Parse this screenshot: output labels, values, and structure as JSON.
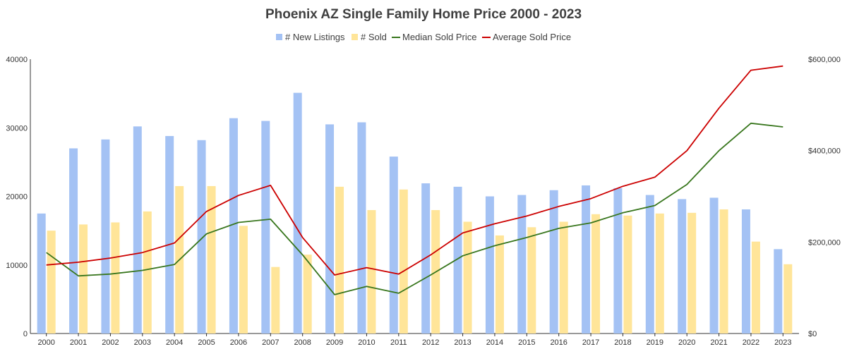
{
  "chart_data": {
    "type": "bar",
    "title": "Phoenix AZ Single Family Home Price 2000 - 2023",
    "categories": [
      "2000",
      "2001",
      "2002",
      "2003",
      "2004",
      "2005",
      "2006",
      "2007",
      "2008",
      "2009",
      "2010",
      "2011",
      "2012",
      "2013",
      "2014",
      "2015",
      "2016",
      "2017",
      "2018",
      "2019",
      "2020",
      "2021",
      "2022",
      "2023"
    ],
    "left_axis": {
      "ylim": [
        0,
        40000
      ],
      "ticks": [
        "0",
        "10000",
        "20000",
        "30000",
        "40000"
      ]
    },
    "right_axis": {
      "ylim": [
        0,
        600000
      ],
      "ticks": [
        "$0",
        "$200,000",
        "$400,000",
        "$600,000"
      ]
    },
    "bar_series": [
      {
        "name": "# New Listings",
        "color": "#a4c2f4",
        "axis": "left",
        "values": [
          17500,
          27000,
          28300,
          30200,
          28800,
          28200,
          31400,
          31000,
          35100,
          30500,
          30800,
          25800,
          21900,
          21400,
          20000,
          20200,
          20900,
          21600,
          21200,
          20200,
          19600,
          19800,
          18100,
          12300
        ]
      },
      {
        "name": "# Sold",
        "color": "#ffe599",
        "axis": "left",
        "values": [
          15000,
          15900,
          16200,
          17800,
          21500,
          21500,
          15700,
          9700,
          11500,
          21400,
          18000,
          21000,
          18000,
          16300,
          14300,
          15500,
          16300,
          17400,
          17200,
          17500,
          17600,
          18100,
          13400,
          10100
        ]
      }
    ],
    "line_series": [
      {
        "name": "Median Sold Price",
        "color": "#38761d",
        "axis": "right",
        "values": [
          177000,
          126000,
          130000,
          138000,
          151000,
          218000,
          243000,
          250000,
          172000,
          85000,
          103000,
          88000,
          128000,
          170000,
          192000,
          210000,
          230000,
          242000,
          264000,
          280000,
          326000,
          400000,
          460000,
          452000
        ]
      },
      {
        "name": "Average Sold Price",
        "color": "#cc0000",
        "axis": "right",
        "values": [
          150000,
          156000,
          165000,
          177000,
          198000,
          267000,
          302000,
          324000,
          210000,
          128000,
          144000,
          130000,
          172000,
          220000,
          240000,
          257000,
          278000,
          295000,
          322000,
          342000,
          400000,
          493000,
          576000,
          585000
        ]
      }
    ],
    "legend_position": "top",
    "grid": false
  }
}
